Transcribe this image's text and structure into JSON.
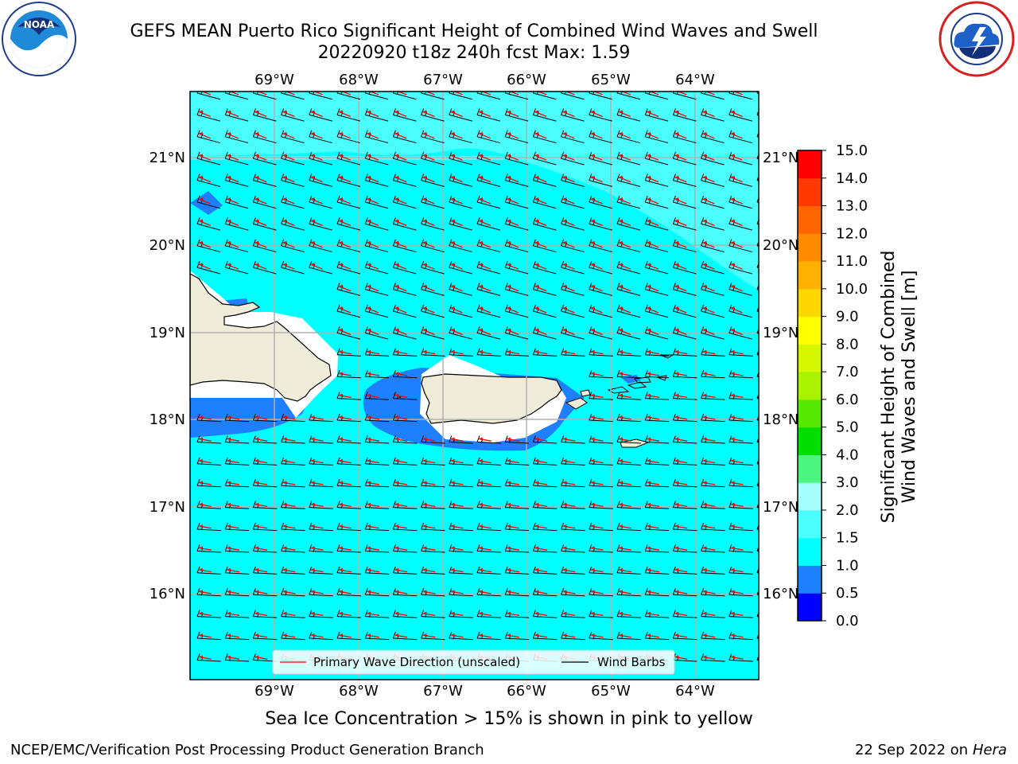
{
  "title_line1": "GEFS MEAN Puerto Rico Significant Height of Combined Wind Waves and Swell",
  "title_line2": "20220920 t18z 240h fcst   Max: 1.59",
  "caption": "Sea Ice Concentration > 15% is shown in pink to yellow",
  "footer_left": "NCEP/EMC/Verification Post Processing Product Generation Branch",
  "footer_right_date": "22 Sep 2022 on",
  "footer_right_host": "Hera",
  "logos": {
    "left": "noaa-logo",
    "right": "nws-logo"
  },
  "map": {
    "lon_labels": [
      "69°W",
      "68°W",
      "67°W",
      "66°W",
      "65°W",
      "64°W"
    ],
    "lat_labels": [
      "21°N",
      "20°N",
      "19°N",
      "18°N",
      "17°N",
      "16°N"
    ],
    "lon_range": [
      -70.0,
      -63.3
    ],
    "lat_range": [
      15.0,
      21.75
    ],
    "legend": {
      "primary_wave": "Primary Wave Direction (unscaled)",
      "wind_barbs": "Wind Barbs"
    },
    "colors": {
      "land": "#efedda",
      "ocean_1_1_5": "#00ffff",
      "ocean_1_5_2": "#4cffff",
      "ocean_0_5_1": "#1f80ff",
      "wave_arrow": "#ff0000",
      "barb": "#000000"
    }
  },
  "colorbar": {
    "label_line1": "Significant Height of Combined",
    "label_line2": "Wind Waves and Swell [m]",
    "ticks": [
      "0.0",
      "0.5",
      "1.0",
      "1.5",
      "2.0",
      "3.0",
      "4.0",
      "5.0",
      "6.0",
      "7.0",
      "8.0",
      "9.0",
      "10.0",
      "11.0",
      "12.0",
      "13.0",
      "14.0",
      "15.0"
    ],
    "colors": [
      "#0000ff",
      "#1f80ff",
      "#00ffff",
      "#4cffff",
      "#a6ffff",
      "#4cf57f",
      "#00de00",
      "#56e800",
      "#a9f200",
      "#d4f700",
      "#ffff00",
      "#ffd700",
      "#ffb000",
      "#ff8c00",
      "#ff6500",
      "#ff3a00",
      "#ff0000"
    ]
  }
}
